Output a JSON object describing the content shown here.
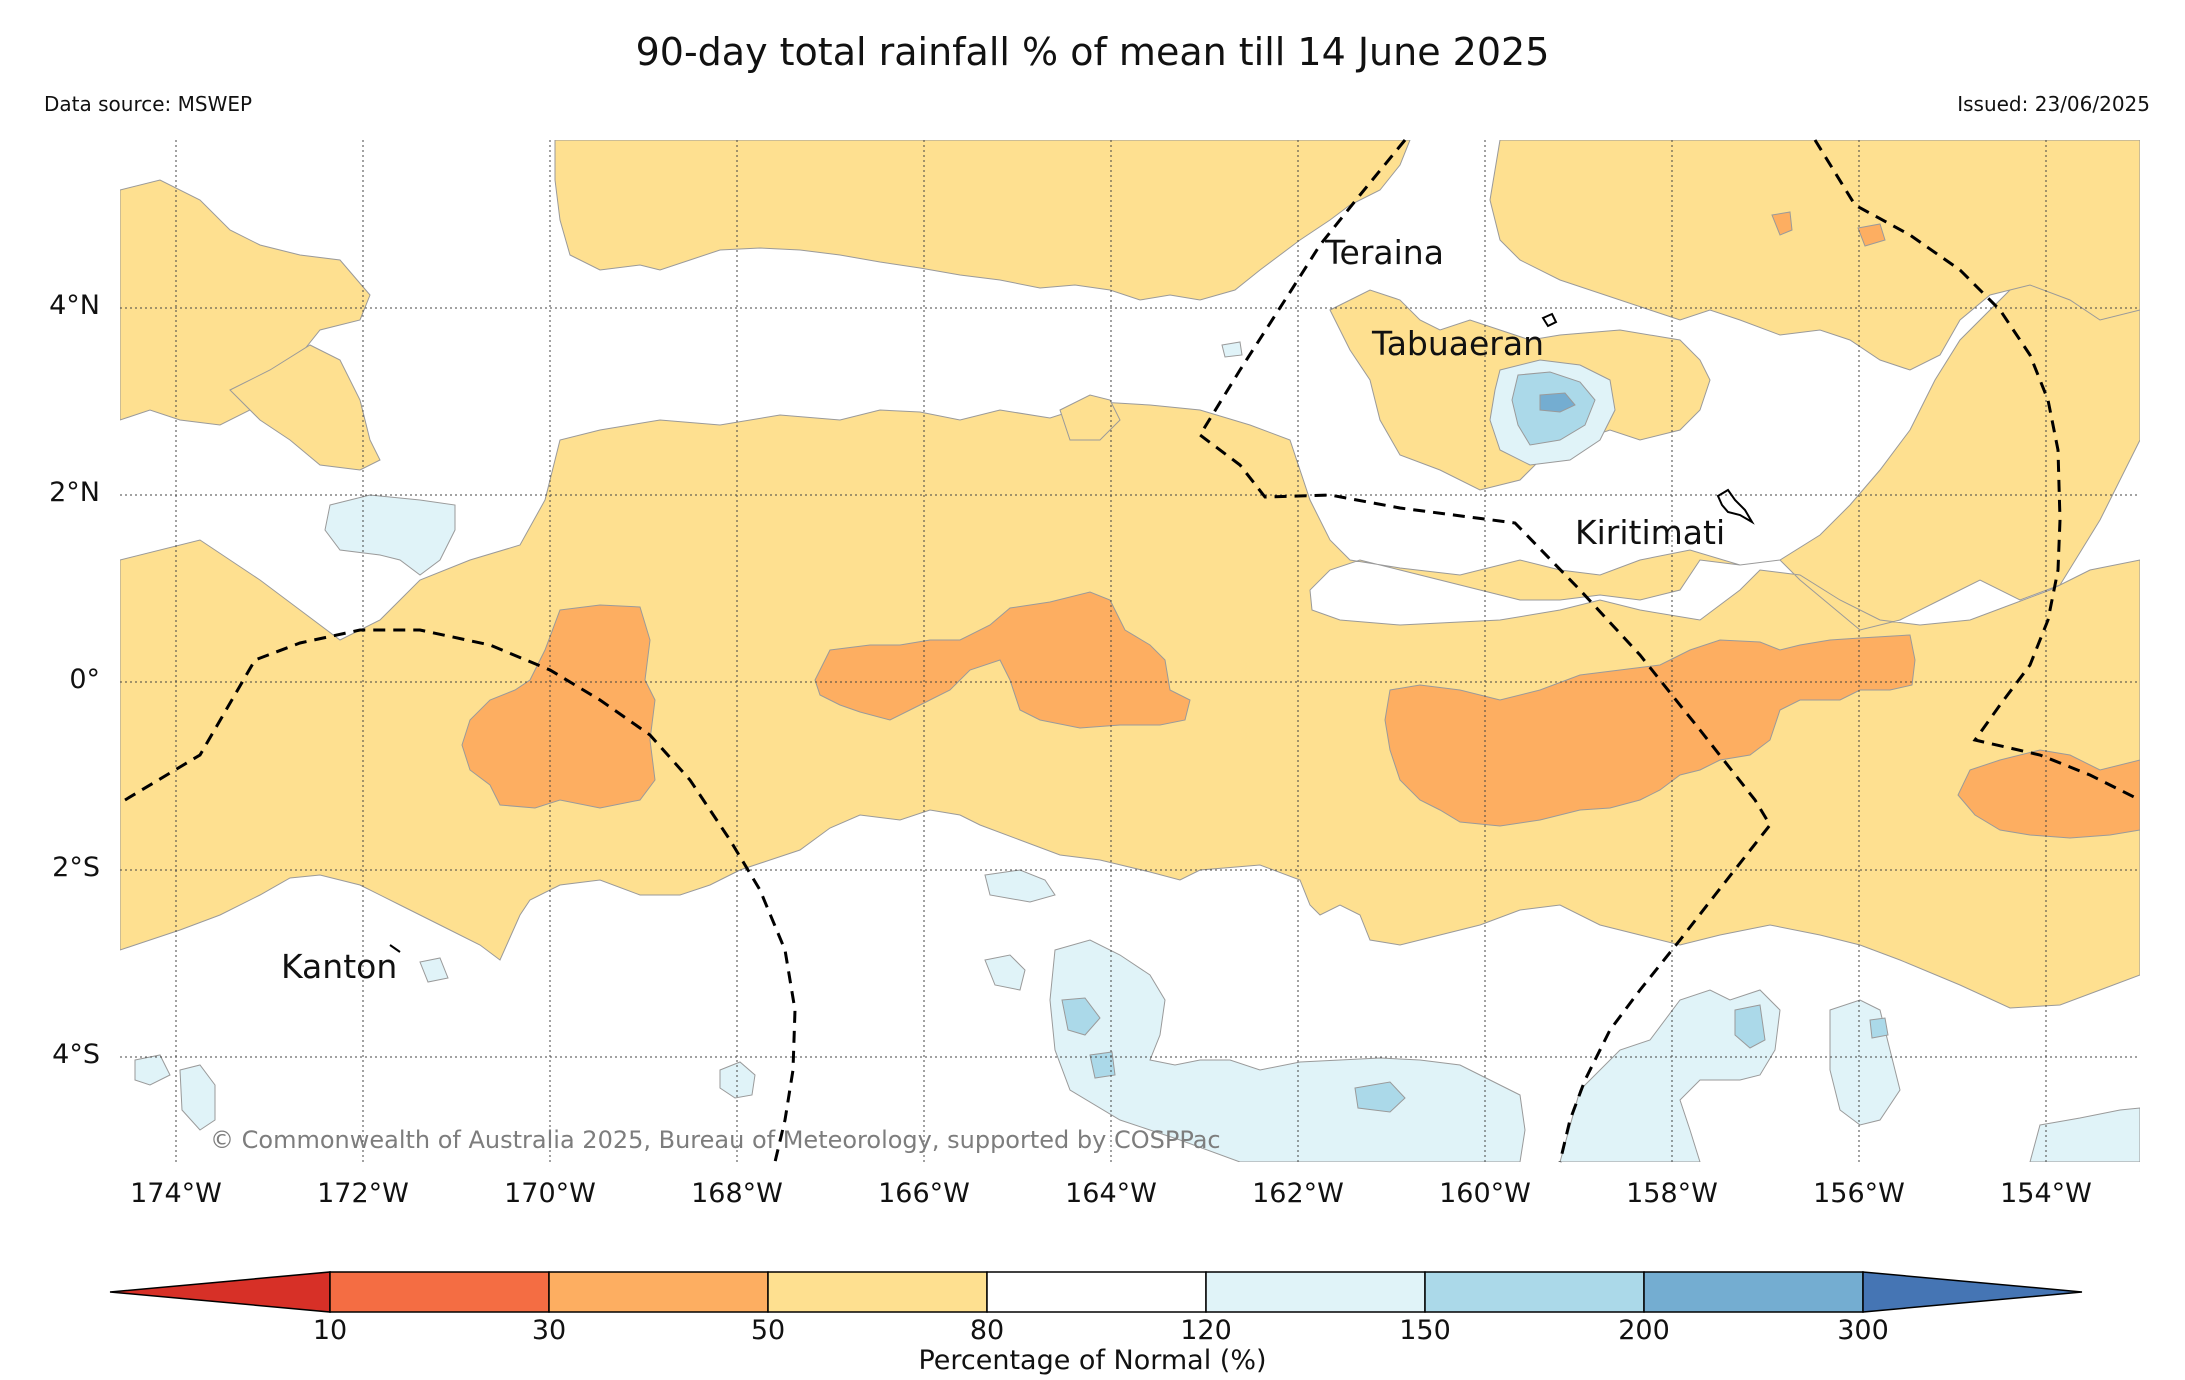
{
  "title": "90-day total rainfall % of mean till 14 June 2025",
  "data_source": "Data source: MSWEP",
  "issued": "Issued: 23/06/2025",
  "copyright": "© Commonwealth of Australia 2025, Bureau of Meteorology, supported by COSPPac",
  "lat_labels": [
    "4°N",
    "2°N",
    "0°",
    "2°S",
    "4°S"
  ],
  "lon_labels": [
    "174°W",
    "172°W",
    "170°W",
    "168°W",
    "166°W",
    "164°W",
    "162°W",
    "160°W",
    "158°W",
    "156°W",
    "154°W"
  ],
  "places": [
    "Teraina",
    "Tabuaeran",
    "Kiritimati",
    "Kanton"
  ],
  "colorbar": {
    "label": "Percentage of Normal (%)",
    "ticks": [
      "10",
      "30",
      "50",
      "80",
      "120",
      "150",
      "200",
      "300"
    ],
    "colors": [
      "#d73027",
      "#f46d43",
      "#fdae61",
      "#fee090",
      "#ffffff",
      "#e0f3f8",
      "#abd9e9",
      "#74add1",
      "#4575b4"
    ]
  },
  "legend_colors": {
    "very_dry": "#fdae61",
    "dry": "#fee090",
    "normal": "#ffffff",
    "wet": "#e0f3f8",
    "very_wet": "#abd9e9",
    "wettest": "#74add1"
  }
}
